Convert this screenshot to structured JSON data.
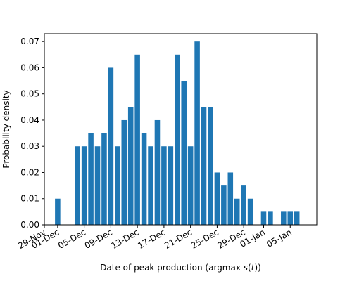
{
  "chart_data": {
    "type": "bar",
    "xlabel": "Date of peak production (argmax s(t))",
    "ylabel": "Probability density",
    "xlim": [
      "2022-11-29",
      "2023-01-09"
    ],
    "ylim": [
      0,
      0.073
    ],
    "grid": false,
    "bar_color": "#1f77b4",
    "x_tick_labels": [
      "29-Nov",
      "01-Dec",
      "05-Dec",
      "09-Dec",
      "13-Dec",
      "17-Dec",
      "21-Dec",
      "25-Dec",
      "29-Dec",
      "01-Jan",
      "05-Jan"
    ],
    "x_tick_dates": [
      "2022-11-29",
      "2022-12-01",
      "2022-12-05",
      "2022-12-09",
      "2022-12-13",
      "2022-12-17",
      "2022-12-21",
      "2022-12-25",
      "2022-12-29",
      "2023-01-01",
      "2023-01-05"
    ],
    "y_tick_values": [
      0,
      0.01,
      0.02,
      0.03,
      0.04,
      0.05,
      0.06,
      0.07
    ],
    "y_tick_labels": [
      "0.00",
      "0.01",
      "0.02",
      "0.03",
      "0.04",
      "0.05",
      "0.06",
      "0.07"
    ],
    "x": [
      "2022-12-01",
      "2022-12-04",
      "2022-12-05",
      "2022-12-06",
      "2022-12-07",
      "2022-12-08",
      "2022-12-09",
      "2022-12-10",
      "2022-12-11",
      "2022-12-12",
      "2022-12-13",
      "2022-12-14",
      "2022-12-15",
      "2022-12-16",
      "2022-12-17",
      "2022-12-18",
      "2022-12-19",
      "2022-12-20",
      "2022-12-21",
      "2022-12-22",
      "2022-12-23",
      "2022-12-24",
      "2022-12-25",
      "2022-12-26",
      "2022-12-27",
      "2022-12-28",
      "2022-12-29",
      "2022-12-30",
      "2023-01-01",
      "2023-01-02",
      "2023-01-04",
      "2023-01-05",
      "2023-01-06"
    ],
    "values": [
      0.01,
      0.03,
      0.03,
      0.035,
      0.03,
      0.035,
      0.06,
      0.03,
      0.04,
      0.045,
      0.065,
      0.035,
      0.03,
      0.04,
      0.03,
      0.03,
      0.065,
      0.055,
      0.03,
      0.07,
      0.045,
      0.045,
      0.02,
      0.015,
      0.02,
      0.01,
      0.015,
      0.01,
      0.005,
      0.005,
      0.005,
      0.005,
      0.005
    ]
  }
}
